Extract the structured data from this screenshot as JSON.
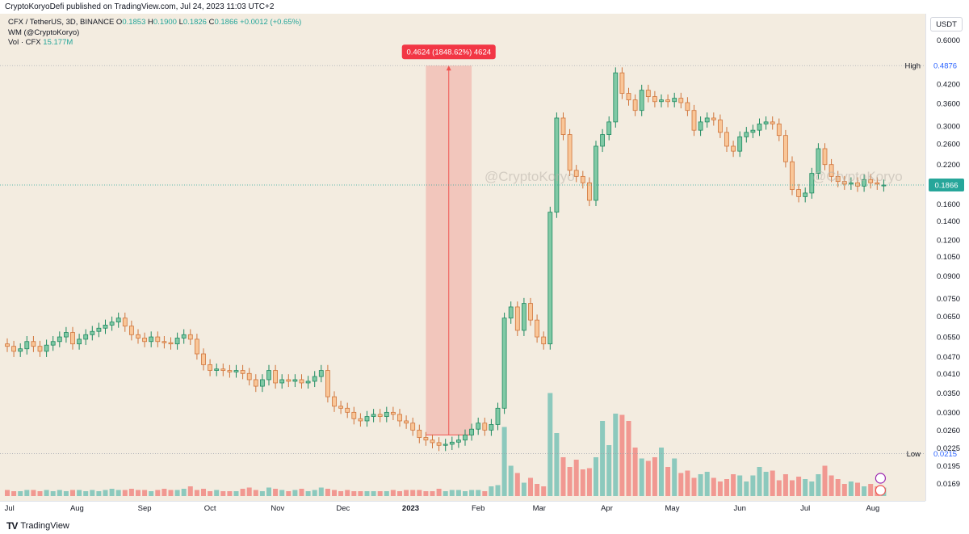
{
  "publish_line": "CryptoKoryoDefi published on TradingView.com, Jul 24, 2023 11:03 UTC+2",
  "legend": {
    "symbol": "CFX / TetherUS, 3D, BINANCE",
    "open_label": "O",
    "open": "0.1853",
    "high_label": "H",
    "high": "0.1900",
    "low_label": "L",
    "low": "0.1826",
    "close_label": "C",
    "close": "0.1866",
    "change": "+0.0012 (+0.65%)",
    "indicator": "WM (@CryptoKoryo)",
    "volume_label": "Vol · CFX",
    "volume": "15.177M"
  },
  "price_unit": "USDT",
  "watermark": "@CryptoKoryo",
  "measure_label": "0.4624 (1848.62%) 4624",
  "brand": "TradingView",
  "colors": {
    "up": "#26a69a",
    "down": "#ef5350",
    "up_body": "#80c9a5",
    "down_body": "#f9c698",
    "wick": "#5d606b",
    "background": "#f3ece0"
  },
  "chart_data": {
    "type": "candlestick",
    "title": "CFX / TetherUS, 3D, BINANCE",
    "y_scale": "log",
    "ylim": [
      0.0155,
      0.68
    ],
    "y_ticks": [
      0.6,
      0.4876,
      0.42,
      0.36,
      0.3,
      0.26,
      0.22,
      0.1866,
      0.16,
      0.14,
      0.12,
      0.105,
      0.09,
      0.075,
      0.065,
      0.055,
      0.047,
      0.041,
      0.035,
      0.03,
      0.026,
      0.0225,
      0.0215,
      0.0195,
      0.0169
    ],
    "y_tick_labels": [
      "0.6000",
      "0.4876",
      "0.4200",
      "0.3600",
      "0.3000",
      "0.2600",
      "0.2200",
      "0.1866",
      "0.1600",
      "0.1400",
      "0.1200",
      "0.1050",
      "0.0900",
      "0.0750",
      "0.0650",
      "0.0550",
      "0.0470",
      "0.0410",
      "0.0350",
      "0.0300",
      "0.0260",
      "0.0225",
      "0.0215",
      "0.0195",
      "0.0169"
    ],
    "x_start": "2022-06-30",
    "bar_interval_days": 3,
    "x_tick_labels": [
      {
        "date": "2022-07-01",
        "label": "Jul"
      },
      {
        "date": "2022-08-01",
        "label": "Aug"
      },
      {
        "date": "2022-09-01",
        "label": "Sep"
      },
      {
        "date": "2022-10-01",
        "label": "Oct"
      },
      {
        "date": "2022-11-01",
        "label": "Nov"
      },
      {
        "date": "2022-12-01",
        "label": "Dec"
      },
      {
        "date": "2023-01-01",
        "label": "2023"
      },
      {
        "date": "2023-02-01",
        "label": "Feb"
      },
      {
        "date": "2023-03-01",
        "label": "Mar"
      },
      {
        "date": "2023-04-01",
        "label": "Apr"
      },
      {
        "date": "2023-05-01",
        "label": "May"
      },
      {
        "date": "2023-06-01",
        "label": "Jun"
      },
      {
        "date": "2023-07-01",
        "label": "Jul"
      },
      {
        "date": "2023-08-01",
        "label": "Aug"
      }
    ],
    "close": [
      0.051,
      0.049,
      0.05,
      0.053,
      0.051,
      0.049,
      0.0515,
      0.053,
      0.055,
      0.057,
      0.052,
      0.054,
      0.056,
      0.0575,
      0.059,
      0.0605,
      0.062,
      0.064,
      0.06,
      0.056,
      0.0545,
      0.053,
      0.055,
      0.053,
      0.0525,
      0.052,
      0.0545,
      0.056,
      0.054,
      0.048,
      0.044,
      0.042,
      0.0425,
      0.042,
      0.0415,
      0.042,
      0.041,
      0.039,
      0.037,
      0.039,
      0.042,
      0.038,
      0.039,
      0.0385,
      0.039,
      0.038,
      0.0385,
      0.04,
      0.042,
      0.034,
      0.0315,
      0.031,
      0.03,
      0.0285,
      0.028,
      0.029,
      0.0295,
      0.029,
      0.03,
      0.0295,
      0.028,
      0.0275,
      0.026,
      0.0245,
      0.024,
      0.0235,
      0.023,
      0.0232,
      0.0236,
      0.024,
      0.025,
      0.0262,
      0.0275,
      0.026,
      0.0272,
      0.031,
      0.064,
      0.07,
      0.058,
      0.072,
      0.063,
      0.055,
      0.052,
      0.15,
      0.32,
      0.28,
      0.21,
      0.2,
      0.19,
      0.165,
      0.255,
      0.28,
      0.31,
      0.46,
      0.39,
      0.37,
      0.34,
      0.4,
      0.38,
      0.365,
      0.37,
      0.365,
      0.375,
      0.362,
      0.34,
      0.29,
      0.31,
      0.32,
      0.315,
      0.285,
      0.255,
      0.245,
      0.275,
      0.285,
      0.29,
      0.305,
      0.31,
      0.305,
      0.278,
      0.225,
      0.18,
      0.17,
      0.175,
      0.205,
      0.25,
      0.22,
      0.2,
      0.192,
      0.188,
      0.19,
      0.185,
      0.195,
      0.19,
      0.188,
      0.1866
    ],
    "open": [
      0.052,
      0.051,
      0.049,
      0.05,
      0.053,
      0.051,
      0.049,
      0.0515,
      0.053,
      0.055,
      0.057,
      0.052,
      0.054,
      0.056,
      0.0575,
      0.059,
      0.0605,
      0.062,
      0.064,
      0.06,
      0.056,
      0.0545,
      0.053,
      0.055,
      0.053,
      0.0525,
      0.052,
      0.0545,
      0.056,
      0.054,
      0.048,
      0.044,
      0.042,
      0.0425,
      0.042,
      0.0415,
      0.042,
      0.041,
      0.039,
      0.037,
      0.039,
      0.042,
      0.038,
      0.039,
      0.0385,
      0.039,
      0.038,
      0.0385,
      0.04,
      0.042,
      0.034,
      0.0315,
      0.031,
      0.03,
      0.0285,
      0.028,
      0.029,
      0.0295,
      0.029,
      0.03,
      0.0295,
      0.028,
      0.0275,
      0.026,
      0.0245,
      0.024,
      0.0235,
      0.023,
      0.0232,
      0.0236,
      0.024,
      0.025,
      0.0262,
      0.0275,
      0.026,
      0.0272,
      0.031,
      0.064,
      0.07,
      0.058,
      0.072,
      0.063,
      0.055,
      0.052,
      0.15,
      0.32,
      0.28,
      0.21,
      0.2,
      0.19,
      0.165,
      0.255,
      0.28,
      0.31,
      0.46,
      0.39,
      0.37,
      0.34,
      0.4,
      0.38,
      0.365,
      0.37,
      0.365,
      0.375,
      0.362,
      0.34,
      0.29,
      0.31,
      0.32,
      0.315,
      0.285,
      0.255,
      0.245,
      0.275,
      0.285,
      0.29,
      0.305,
      0.31,
      0.305,
      0.278,
      0.225,
      0.18,
      0.17,
      0.175,
      0.205,
      0.25,
      0.22,
      0.2,
      0.192,
      0.188,
      0.19,
      0.185,
      0.195,
      0.19,
      0.1853
    ],
    "volume_relative": [
      0.05,
      0.04,
      0.04,
      0.05,
      0.05,
      0.04,
      0.05,
      0.04,
      0.05,
      0.04,
      0.05,
      0.05,
      0.04,
      0.05,
      0.04,
      0.05,
      0.06,
      0.05,
      0.05,
      0.06,
      0.05,
      0.05,
      0.04,
      0.05,
      0.06,
      0.05,
      0.05,
      0.06,
      0.08,
      0.05,
      0.06,
      0.04,
      0.05,
      0.04,
      0.04,
      0.04,
      0.06,
      0.07,
      0.05,
      0.04,
      0.07,
      0.06,
      0.05,
      0.04,
      0.05,
      0.06,
      0.04,
      0.05,
      0.07,
      0.06,
      0.05,
      0.04,
      0.05,
      0.04,
      0.04,
      0.04,
      0.04,
      0.04,
      0.04,
      0.05,
      0.04,
      0.05,
      0.05,
      0.05,
      0.04,
      0.04,
      0.06,
      0.04,
      0.05,
      0.05,
      0.04,
      0.05,
      0.05,
      0.04,
      0.08,
      0.09,
      0.57,
      0.25,
      0.19,
      0.11,
      0.15,
      0.1,
      0.08,
      0.85,
      0.52,
      0.32,
      0.24,
      0.3,
      0.22,
      0.23,
      0.32,
      0.62,
      0.42,
      0.68,
      0.67,
      0.62,
      0.4,
      0.31,
      0.29,
      0.32,
      0.4,
      0.24,
      0.31,
      0.19,
      0.21,
      0.15,
      0.18,
      0.2,
      0.15,
      0.12,
      0.14,
      0.18,
      0.17,
      0.12,
      0.17,
      0.24,
      0.2,
      0.21,
      0.13,
      0.18,
      0.13,
      0.16,
      0.14,
      0.12,
      0.18,
      0.25,
      0.17,
      0.14,
      0.1,
      0.12,
      0.11,
      0.08,
      0.1,
      0.08,
      0.07
    ],
    "high_marker": {
      "label": "High",
      "value": 0.4876
    },
    "low_marker": {
      "label": "Low",
      "value": 0.0215
    },
    "last_price": {
      "value": 0.1866,
      "label": "0.1866"
    },
    "measure": {
      "from": 0.025,
      "to": 0.4876,
      "label": "0.4624 (1848.62%) 4624",
      "start_date": "2023-01-08",
      "end_date": "2023-01-29"
    }
  }
}
